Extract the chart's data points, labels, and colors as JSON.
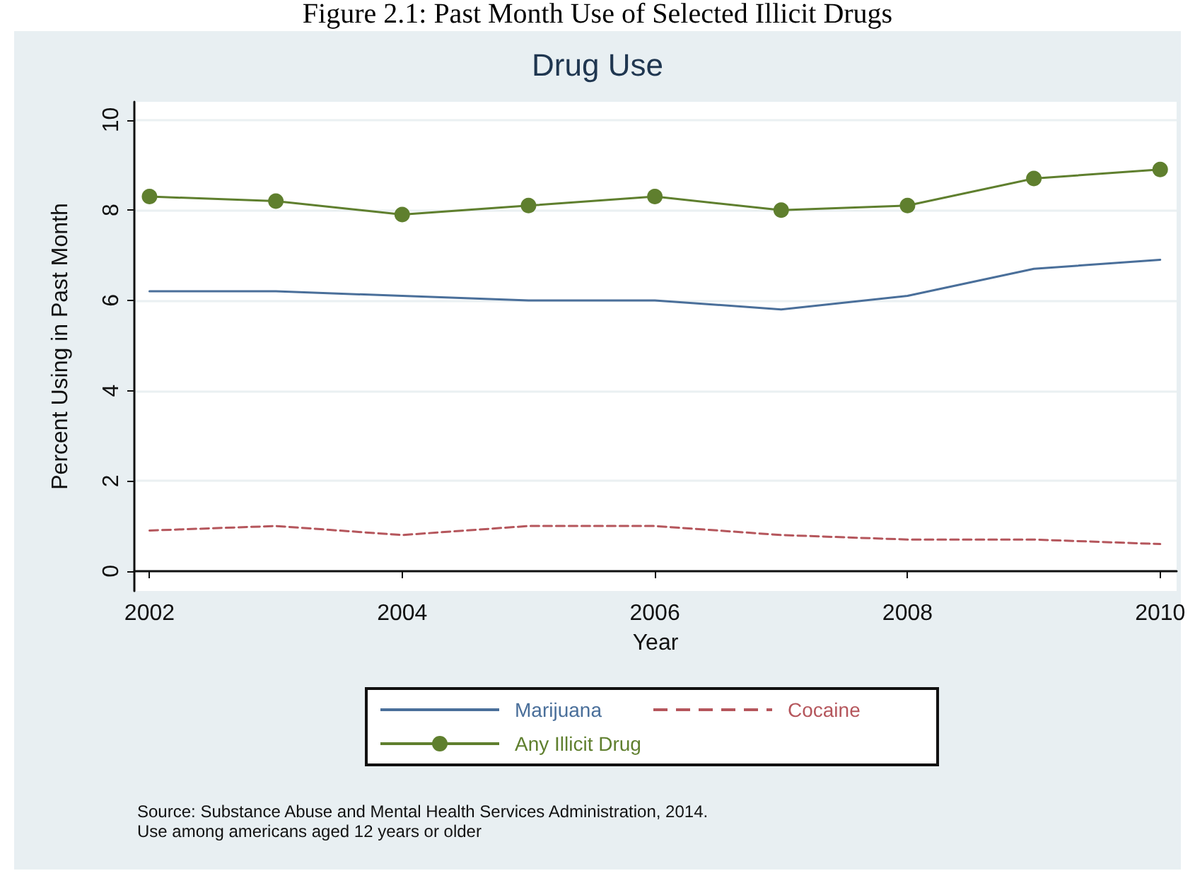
{
  "chart_data": {
    "type": "line",
    "title": "Drug Use",
    "xlabel": "Year",
    "ylabel": "Percent Using in Past Month",
    "annotations": [
      "Figure 2.1: Past Month Use of Selected Illicit Drugs",
      "Source: Substance Abuse and Mental Health Services Administration, 2014.",
      "Use among americans aged 12 years or older"
    ],
    "x": [
      2002,
      2003,
      2004,
      2005,
      2006,
      2007,
      2008,
      2009,
      2010
    ],
    "series": [
      {
        "name": "Marijuana",
        "color": "#4a6f9a",
        "marker": "none",
        "line_style": "solid",
        "values": [
          6.2,
          6.2,
          6.1,
          6.0,
          6.0,
          5.8,
          6.1,
          6.7,
          6.9
        ]
      },
      {
        "name": "Cocaine",
        "color": "#b5565c",
        "marker": "none",
        "line_style": "dashed",
        "values": [
          0.9,
          1.0,
          0.8,
          1.0,
          1.0,
          0.8,
          0.7,
          0.7,
          0.6
        ]
      },
      {
        "name": "Any Illicit Drug",
        "color": "#5f7f2e",
        "marker": "circle",
        "line_style": "solid",
        "values": [
          8.3,
          8.2,
          7.9,
          8.1,
          8.3,
          8.0,
          8.1,
          8.7,
          8.9
        ]
      }
    ],
    "xlim": [
      2001.88,
      2010.13
    ],
    "xticks": [
      2002,
      2004,
      2006,
      2008,
      2010
    ],
    "ylim": [
      -0.44,
      10.4
    ],
    "yticks": [
      0,
      2,
      4,
      6,
      8,
      10
    ],
    "grid": "y",
    "legend": "bottom"
  }
}
